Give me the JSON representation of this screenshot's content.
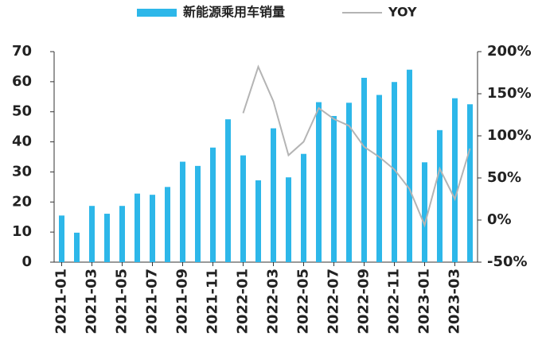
{
  "chart_data": {
    "type": "bar_line",
    "categories": [
      "2021-01",
      null,
      "2021-03",
      null,
      "2021-05",
      null,
      "2021-07",
      null,
      "2021-09",
      null,
      "2021-11",
      null,
      "2022-01",
      null,
      "2022-03",
      null,
      "2022-05",
      null,
      "2022-07",
      null,
      "2022-09",
      null,
      "2022-11",
      null,
      "2023-01",
      null,
      "2023-03",
      null
    ],
    "series": [
      {
        "name": "新能源乘用车销量",
        "color": "#2db7e9",
        "values": [
          15.5,
          9.8,
          18.7,
          16.1,
          18.7,
          22.8,
          22.4,
          25,
          33.4,
          32,
          38.1,
          47.5,
          35.5,
          27.2,
          44.5,
          28.2,
          36,
          53.2,
          48.6,
          53,
          61.3,
          55.6,
          59.9,
          64,
          33.2,
          43.9,
          54.5,
          52.5
        ]
      },
      {
        "name": "YOY",
        "color": "#b4b4b4",
        "axis": "y2",
        "values": [
          null,
          null,
          null,
          null,
          null,
          null,
          null,
          null,
          null,
          null,
          null,
          null,
          127,
          182,
          141,
          77,
          93,
          133,
          120,
          112,
          87,
          75,
          60,
          37,
          -6,
          61,
          25,
          85
        ]
      }
    ],
    "ylim": [
      0,
      70
    ],
    "yticks": [
      0,
      10,
      20,
      30,
      40,
      50,
      60,
      70
    ],
    "y2lim": [
      -50,
      200
    ],
    "y2ticks": [
      {
        "value": -50,
        "label": "-50%"
      },
      {
        "value": 0,
        "label": "0%"
      },
      {
        "value": 50,
        "label": "50%"
      },
      {
        "value": 100,
        "label": "100%"
      },
      {
        "value": 150,
        "label": "150%"
      },
      {
        "value": 200,
        "label": "200%"
      }
    ],
    "legend": "top"
  }
}
